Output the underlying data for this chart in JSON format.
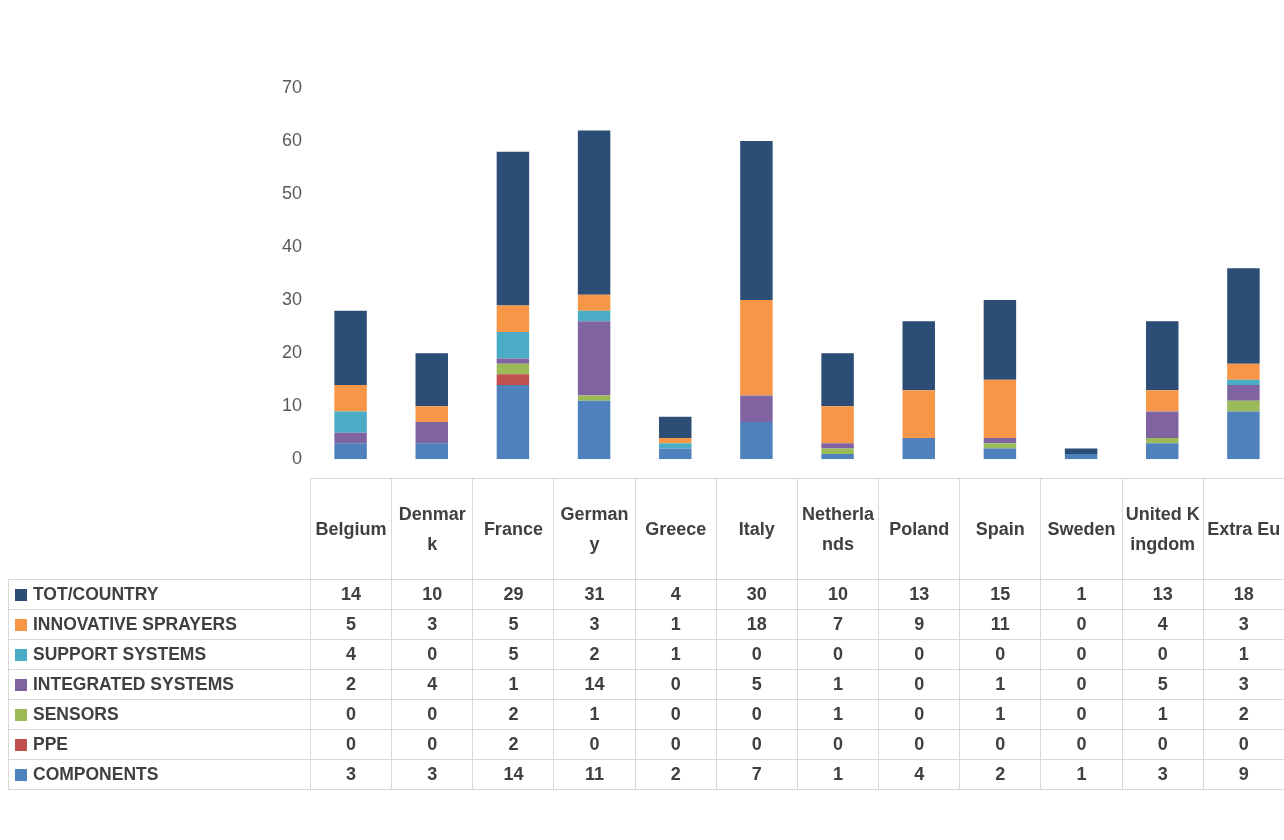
{
  "chart_data": {
    "type": "bar",
    "stacked": true,
    "data_labels": true,
    "legend": "bottom",
    "grid": false,
    "categories": [
      "Belgium",
      "Denmark",
      "France",
      "Germany",
      "Greece",
      "Italy",
      "Netherlands",
      "Poland",
      "Spain",
      "Sweden",
      "United Kingdom",
      "Extra Eu"
    ],
    "ylim": [
      0,
      70
    ],
    "yticks": [
      0,
      10,
      20,
      30,
      40,
      50,
      60,
      70
    ],
    "series": [
      {
        "name": "COMPONENTS",
        "color": "#4f81bd",
        "values": [
          3,
          3,
          14,
          11,
          2,
          7,
          1,
          4,
          2,
          1,
          3,
          9
        ]
      },
      {
        "name": "PPE",
        "color": "#c0504d",
        "values": [
          0,
          0,
          2,
          0,
          0,
          0,
          0,
          0,
          0,
          0,
          0,
          0
        ]
      },
      {
        "name": "SENSORS",
        "color": "#9bbb59",
        "values": [
          0,
          0,
          2,
          1,
          0,
          0,
          1,
          0,
          1,
          0,
          1,
          2
        ]
      },
      {
        "name": "INTEGRATED SYSTEMS",
        "color": "#8064a2",
        "values": [
          2,
          4,
          1,
          14,
          0,
          5,
          1,
          0,
          1,
          0,
          5,
          3
        ]
      },
      {
        "name": "SUPPORT SYSTEMS",
        "color": "#4bacc6",
        "values": [
          4,
          0,
          5,
          2,
          1,
          0,
          0,
          0,
          0,
          0,
          0,
          1
        ]
      },
      {
        "name": "INNOVATIVE SPRAYERS",
        "color": "#f79646",
        "values": [
          5,
          3,
          5,
          3,
          1,
          18,
          7,
          9,
          11,
          0,
          4,
          3
        ]
      },
      {
        "name": "TOT/COUNTRY",
        "color": "#2c4d75",
        "values": [
          14,
          10,
          29,
          31,
          4,
          30,
          10,
          13,
          15,
          1,
          13,
          18
        ]
      }
    ]
  }
}
